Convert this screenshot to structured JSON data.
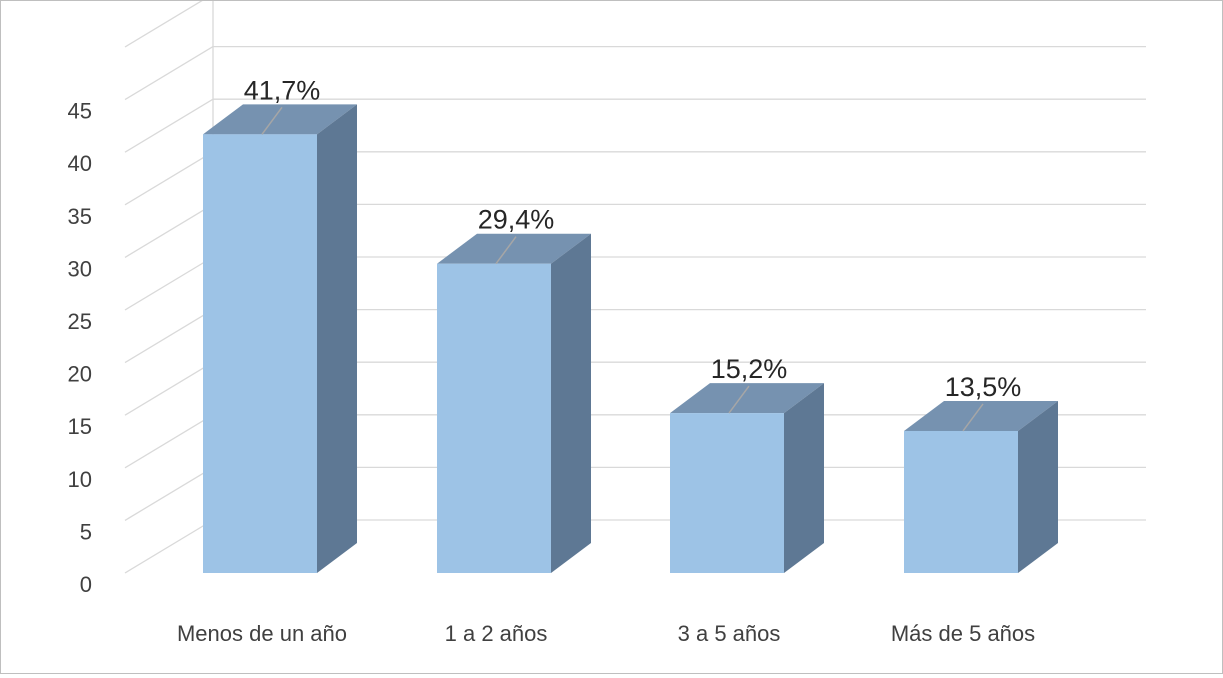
{
  "chart_data": {
    "type": "bar",
    "style": "3d-column",
    "categories": [
      "Menos de un año",
      "1 a 2 años",
      "3 a 5 años",
      "Más de 5 años"
    ],
    "values": [
      41.7,
      29.4,
      15.2,
      13.5
    ],
    "data_labels": [
      "41,7%",
      "29,4%",
      "15,2%",
      "13,5%"
    ],
    "yticks": [
      "0",
      "5",
      "10",
      "15",
      "20",
      "25",
      "30",
      "35",
      "40",
      "45"
    ],
    "ylim": [
      0,
      50
    ],
    "grid": true,
    "legend": "none",
    "colors": {
      "bar_front": "#9dc3e6",
      "bar_top": "#7692b0",
      "bar_side": "#5e7894",
      "grid": "#d9d9d9",
      "text": "#404040",
      "label": "#262626",
      "leader": "#a6a6a6"
    }
  }
}
